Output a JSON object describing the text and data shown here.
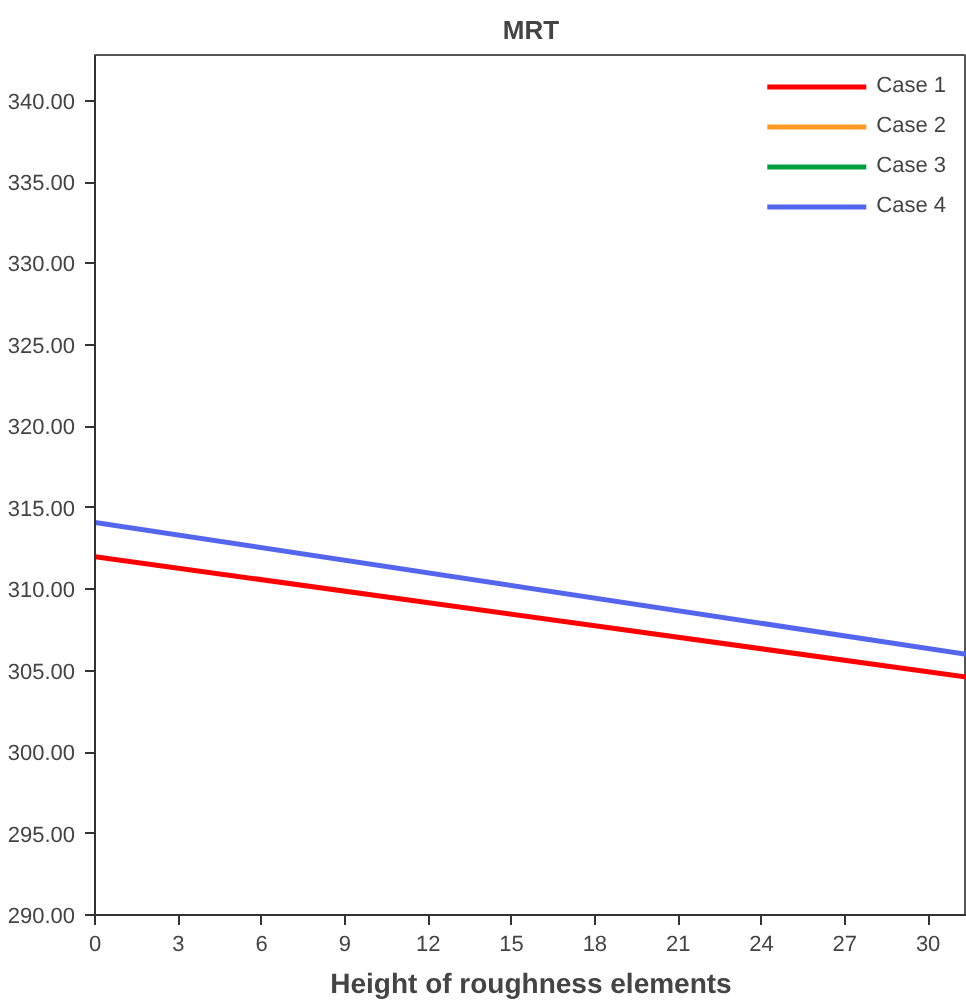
{
  "chart_data": {
    "type": "line",
    "title": "MRT",
    "xlabel": "Height of roughness elements",
    "x": [
      0,
      31.4
    ],
    "series": [
      {
        "name": "Case 1",
        "color": "#ff0000",
        "values": [
          312.0,
          304.6
        ]
      },
      {
        "name": "Case 2",
        "color": "#ff9922",
        "values": [
          null,
          null
        ]
      },
      {
        "name": "Case 3",
        "color": "#00a040",
        "values": [
          null,
          null
        ]
      },
      {
        "name": "Case 4",
        "color": "#5566ee",
        "values": [
          314.1,
          306.0
        ]
      }
    ],
    "xlim": [
      0,
      31.4
    ],
    "xticks": [
      0,
      3,
      6,
      9,
      12,
      15,
      18,
      21,
      24,
      27,
      30
    ],
    "ylim": [
      290,
      342.8
    ],
    "yticks": [
      {
        "value": 290,
        "label": "290.00"
      },
      {
        "value": 295,
        "label": "295.00"
      },
      {
        "value": 300,
        "label": "300.00"
      },
      {
        "value": 305,
        "label": "305.00"
      },
      {
        "value": 310,
        "label": "310.00"
      },
      {
        "value": 315,
        "label": "315.00"
      },
      {
        "value": 320,
        "label": "320.00"
      },
      {
        "value": 325,
        "label": "325.00"
      },
      {
        "value": 330,
        "label": "330.00"
      },
      {
        "value": 335,
        "label": "335.00"
      },
      {
        "value": 340,
        "label": "340.00"
      }
    ],
    "grid": false,
    "legend": "top right",
    "marker": "none",
    "line_style": "solid"
  }
}
